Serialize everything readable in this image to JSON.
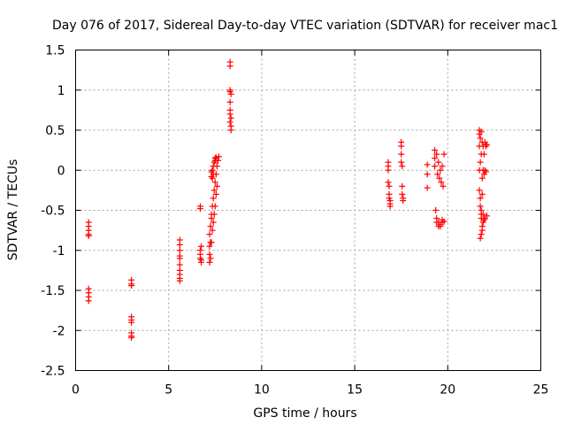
{
  "chart_data": {
    "type": "scatter",
    "title": "Day 076 of 2017, Sidereal Day-to-day VTEC variation (SDTVAR) for receiver mac1",
    "xlabel": "GPS time / hours",
    "ylabel": "SDTVAR / TECUs",
    "xlim": [
      0,
      25
    ],
    "ylim": [
      -2.5,
      1.5
    ],
    "xticks": [
      0,
      5,
      10,
      15,
      20,
      25
    ],
    "xtick_labels": [
      "0",
      "5",
      "10",
      "15",
      "20",
      "25"
    ],
    "yticks": [
      -2.5,
      -2,
      -1.5,
      -1,
      -0.5,
      0,
      0.5,
      1,
      1.5
    ],
    "ytick_labels": [
      "-2.5",
      "-2",
      "-1.5",
      "-1",
      "-0.5",
      "0",
      "0.5",
      "1",
      "1.5"
    ],
    "grid": true,
    "marker": "+",
    "color": "#ff0000",
    "series": [
      {
        "name": "mac1",
        "x": [
          0.7,
          0.7,
          0.7,
          0.7,
          0.7,
          0.7,
          0.7,
          0.7,
          0.7,
          3.0,
          3.0,
          3.0,
          3.0,
          3.0,
          3.0,
          3.0,
          3.0,
          3.0,
          5.6,
          5.6,
          5.6,
          5.6,
          5.6,
          5.6,
          5.6,
          5.6,
          5.6,
          5.6,
          6.7,
          6.7,
          6.7,
          6.7,
          6.7,
          6.75,
          6.75,
          6.75,
          7.2,
          7.2,
          7.2,
          7.2,
          7.25,
          7.25,
          7.25,
          7.3,
          7.3,
          7.3,
          7.35,
          7.35,
          7.4,
          7.4,
          7.45,
          7.45,
          7.5,
          7.5,
          7.55,
          7.55,
          7.6,
          7.6,
          7.65,
          7.7,
          7.3,
          7.3,
          7.35,
          7.35,
          7.4,
          7.4,
          7.45,
          7.5,
          7.5,
          7.55,
          8.3,
          8.3,
          8.3,
          8.3,
          8.3,
          8.3,
          8.3,
          8.3,
          8.35,
          8.35,
          8.35,
          8.35,
          16.8,
          16.8,
          16.8,
          16.8,
          16.85,
          16.85,
          16.85,
          16.9,
          16.9,
          16.9,
          17.5,
          17.5,
          17.5,
          17.5,
          17.55,
          17.55,
          17.55,
          17.6,
          17.6,
          18.9,
          18.9,
          18.9,
          19.3,
          19.3,
          19.3,
          19.35,
          19.4,
          19.4,
          19.45,
          19.5,
          19.5,
          19.55,
          19.6,
          19.6,
          19.65,
          19.7,
          19.7,
          19.75,
          19.8,
          19.4,
          19.5,
          19.6,
          19.7,
          19.8,
          21.7,
          21.7,
          21.7,
          21.7,
          21.7,
          21.75,
          21.75,
          21.75,
          21.75,
          21.8,
          21.8,
          21.8,
          21.8,
          21.85,
          21.85,
          21.85,
          21.9,
          21.9,
          21.9,
          21.95,
          21.95,
          22.0,
          22.0,
          22.05,
          22.05,
          22.1,
          22.1,
          21.8,
          21.85,
          21.9,
          21.95,
          22.0,
          21.75,
          21.8,
          21.85
        ],
        "y": [
          -0.65,
          -0.7,
          -0.75,
          -0.8,
          -0.82,
          -1.48,
          -1.53,
          -1.58,
          -1.63,
          -1.37,
          -1.42,
          -1.44,
          -1.83,
          -1.87,
          -1.9,
          -2.03,
          -2.07,
          -2.09,
          -0.87,
          -0.93,
          -1.0,
          -1.07,
          -1.1,
          -1.18,
          -1.25,
          -1.3,
          -1.35,
          -1.38,
          -0.45,
          -0.48,
          -1.0,
          -1.05,
          -1.1,
          -0.95,
          -1.12,
          -1.15,
          -1.15,
          -1.05,
          -0.95,
          -0.8,
          -1.1,
          -0.9,
          -0.7,
          -0.6,
          -0.55,
          -0.9,
          -0.45,
          -0.75,
          -0.35,
          -0.65,
          -0.25,
          -0.55,
          -0.15,
          -0.45,
          -0.05,
          -0.3,
          0.05,
          -0.2,
          0.12,
          0.17,
          -0.02,
          -0.08,
          0.0,
          -0.1,
          0.05,
          -0.05,
          0.1,
          0.12,
          0.15,
          0.16,
          1.35,
          1.3,
          1.0,
          0.98,
          0.85,
          0.75,
          0.7,
          0.6,
          0.55,
          0.5,
          0.65,
          0.95,
          0.1,
          0.05,
          0.0,
          -0.15,
          -0.2,
          -0.3,
          -0.35,
          -0.38,
          -0.42,
          -0.45,
          0.35,
          0.3,
          0.2,
          0.1,
          0.05,
          -0.2,
          -0.3,
          -0.35,
          -0.38,
          0.07,
          -0.05,
          -0.22,
          0.25,
          0.15,
          0.05,
          -0.5,
          0.2,
          -0.6,
          -0.05,
          0.1,
          -0.65,
          -0.1,
          0.0,
          -0.7,
          -0.15,
          0.05,
          -0.65,
          -0.2,
          0.2,
          -0.65,
          -0.7,
          -0.68,
          -0.62,
          -0.64,
          0.5,
          0.45,
          0.3,
          0.0,
          -0.25,
          0.4,
          0.1,
          -0.35,
          -0.85,
          0.48,
          0.2,
          -0.55,
          -0.8,
          0.35,
          -0.1,
          -0.7,
          0.3,
          0.0,
          -0.55,
          0.2,
          -0.05,
          0.35,
          0.0,
          0.3,
          -0.02,
          0.32,
          -0.57,
          -0.6,
          -0.75,
          -0.65,
          -0.62,
          -0.6,
          -0.45,
          -0.5,
          -0.3
        ]
      }
    ]
  }
}
